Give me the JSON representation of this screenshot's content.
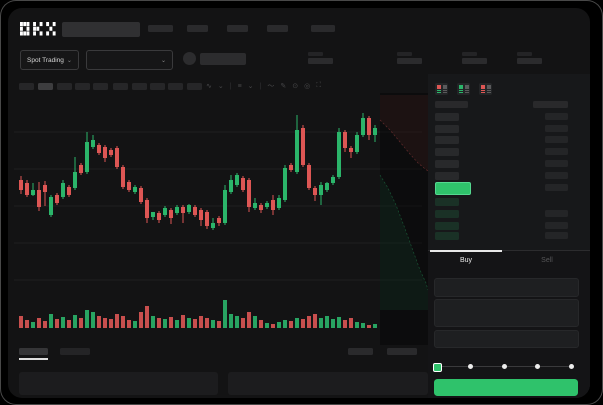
{
  "app": {
    "logo_text": "OKX"
  },
  "header": {
    "search_placeholder": "",
    "nav_placeholder_count": 5
  },
  "subheader": {
    "market_selector_label": "Spot Trading",
    "market_selector_chevron": "⌄",
    "pair_selector_chevron": "⌄",
    "stats_placeholder_count": 4
  },
  "chart_toolbar": {
    "timeframe_count": 10,
    "active_timeframe_index": 1,
    "icons": [
      {
        "name": "indicator-icon",
        "glyph": "∿"
      },
      {
        "name": "chevron-down-icon",
        "glyph": "⌄"
      },
      {
        "name": "divider",
        "glyph": "|"
      },
      {
        "name": "chart-style-icon",
        "glyph": "≡"
      },
      {
        "name": "chevron-down-icon",
        "glyph": "⌄"
      },
      {
        "name": "divider",
        "glyph": "|"
      },
      {
        "name": "line-tool-icon",
        "glyph": "〜"
      },
      {
        "name": "draw-tool-icon",
        "glyph": "✎"
      },
      {
        "name": "screenshot-icon",
        "glyph": "⊙"
      },
      {
        "name": "alert-icon",
        "glyph": "◎"
      },
      {
        "name": "fullscreen-icon",
        "glyph": "⛶"
      }
    ]
  },
  "chart_data": {
    "type": "candlestick+volume",
    "title": "",
    "note": "skeleton trading chart, no axis tick labels visible; prices in relative units (higher = higher on screen)",
    "grid": true,
    "candles_ohlc": [
      [
        120,
        124,
        106,
        110
      ],
      [
        117,
        120,
        103,
        105
      ],
      [
        105,
        117,
        104,
        110
      ],
      [
        110,
        118,
        89,
        93
      ],
      [
        115,
        119,
        94,
        108
      ],
      [
        85,
        105,
        83,
        103
      ],
      [
        105,
        107,
        95,
        97
      ],
      [
        103,
        120,
        101,
        117
      ],
      [
        113,
        115,
        103,
        105
      ],
      [
        112,
        143,
        110,
        128
      ],
      [
        135,
        137,
        125,
        127
      ],
      [
        128,
        168,
        126,
        158
      ],
      [
        153,
        165,
        151,
        160
      ],
      [
        155,
        157,
        145,
        147
      ],
      [
        153,
        155,
        138,
        142
      ],
      [
        150,
        152,
        143,
        145
      ],
      [
        152,
        154,
        131,
        133
      ],
      [
        133,
        135,
        111,
        113
      ],
      [
        118,
        120,
        108,
        110
      ],
      [
        108,
        115,
        106,
        113
      ],
      [
        112,
        114,
        96,
        98
      ],
      [
        100,
        102,
        77,
        82
      ],
      [
        83,
        88,
        80,
        88
      ],
      [
        87,
        89,
        77,
        80
      ],
      [
        85,
        94,
        83,
        92
      ],
      [
        90,
        92,
        76,
        82
      ],
      [
        87,
        95,
        85,
        93
      ],
      [
        93,
        95,
        77,
        87
      ],
      [
        88,
        96,
        86,
        95
      ],
      [
        93,
        95,
        83,
        85
      ],
      [
        90,
        92,
        74,
        80
      ],
      [
        88,
        90,
        71,
        74
      ],
      [
        72,
        82,
        70,
        77
      ],
      [
        82,
        84,
        74,
        77
      ],
      [
        77,
        115,
        75,
        110
      ],
      [
        108,
        125,
        106,
        120
      ],
      [
        115,
        127,
        113,
        125
      ],
      [
        122,
        124,
        108,
        110
      ],
      [
        120,
        122,
        88,
        93
      ],
      [
        92,
        102,
        90,
        97
      ],
      [
        95,
        97,
        87,
        90
      ],
      [
        93,
        99,
        91,
        97
      ],
      [
        100,
        105,
        85,
        90
      ],
      [
        92,
        105,
        90,
        102
      ],
      [
        100,
        135,
        98,
        132
      ],
      [
        135,
        137,
        128,
        130
      ],
      [
        128,
        185,
        126,
        170
      ],
      [
        172,
        175,
        133,
        135
      ],
      [
        135,
        137,
        110,
        112
      ],
      [
        112,
        114,
        99,
        105
      ],
      [
        105,
        118,
        95,
        115
      ],
      [
        110,
        118,
        108,
        117
      ],
      [
        117,
        125,
        115,
        123
      ],
      [
        123,
        172,
        121,
        168
      ],
      [
        168,
        170,
        148,
        152
      ],
      [
        152,
        154,
        142,
        148
      ],
      [
        148,
        168,
        146,
        165
      ],
      [
        165,
        187,
        163,
        182
      ],
      [
        182,
        184,
        160,
        165
      ],
      [
        165,
        175,
        158,
        172
      ]
    ],
    "volume": [
      12,
      8,
      6,
      10,
      7,
      14,
      9,
      11,
      8,
      13,
      10,
      18,
      16,
      12,
      10,
      9,
      14,
      12,
      8,
      7,
      16,
      22,
      12,
      10,
      9,
      11,
      8,
      13,
      10,
      9,
      12,
      10,
      8,
      7,
      28,
      14,
      12,
      10,
      16,
      12,
      8,
      5,
      4,
      6,
      8,
      7,
      10,
      9,
      12,
      14,
      10,
      12,
      9,
      11,
      8,
      10,
      6,
      5,
      3,
      4
    ],
    "depth_overlay": {
      "asks_boundary": [
        [
          372,
          112
        ],
        [
          382,
          122
        ],
        [
          392,
          134
        ],
        [
          402,
          146
        ],
        [
          410,
          155
        ],
        [
          416,
          160
        ],
        [
          420,
          163
        ]
      ],
      "bids_boundary": [
        [
          372,
          167
        ],
        [
          380,
          180
        ],
        [
          388,
          197
        ],
        [
          396,
          218
        ],
        [
          404,
          240
        ],
        [
          412,
          262
        ],
        [
          418,
          275
        ],
        [
          420,
          282
        ]
      ]
    }
  },
  "orderbook": {
    "view_toggles": [
      {
        "name": "book-combined-icon",
        "bars": [
          "down",
          "down",
          "up",
          "up"
        ]
      },
      {
        "name": "book-bids-icon",
        "bars": [
          "up",
          "up",
          "up",
          "up"
        ]
      },
      {
        "name": "book-asks-icon",
        "bars": [
          "down",
          "down",
          "down",
          "down"
        ]
      }
    ],
    "ask_rows": 6,
    "bid_rows": 4,
    "bid_amount_visible": [
      false,
      true,
      true,
      true
    ],
    "last_price_row": {
      "highlight": true
    }
  },
  "trade_panel": {
    "tabs": [
      {
        "label": "Buy",
        "active": true
      },
      {
        "label": "Sell",
        "active": false
      }
    ],
    "input_placeholders": 3,
    "slider": {
      "steps": 5,
      "active_step": 0
    },
    "submit_button_label": ""
  },
  "bottom_bar": {
    "tab_placeholder_count": 2,
    "active_tab_index": 0,
    "right_button_count": 2,
    "panel_count": 2
  },
  "colors": {
    "up": "#2bb56a",
    "down": "#dd5654",
    "accent": "#2fc26b",
    "background": "#131314",
    "panel": "#17181a"
  }
}
